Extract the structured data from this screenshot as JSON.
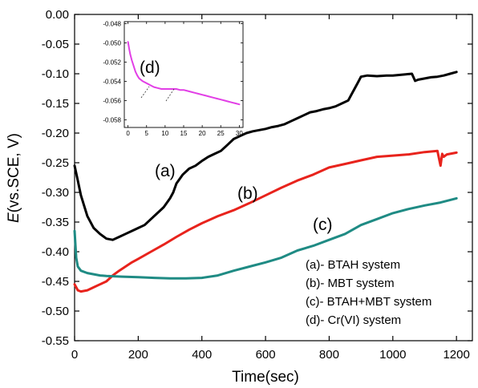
{
  "chart_data": [
    {
      "type": "line",
      "xlabel": "Time(sec)",
      "ylabel_italic": "E",
      "ylabel_rest": "(vs.SCE, V)",
      "xlim": [
        0,
        1250
      ],
      "ylim": [
        -0.55,
        0.0
      ],
      "xticks": [
        0,
        200,
        400,
        600,
        800,
        1000,
        1200
      ],
      "xtick_labels": [
        "0",
        "200",
        "400",
        "600",
        "800",
        "1000",
        "1200"
      ],
      "yticks": [
        0.0,
        -0.05,
        -0.1,
        -0.15,
        -0.2,
        -0.25,
        -0.3,
        -0.35,
        -0.4,
        -0.45,
        -0.5,
        -0.55
      ],
      "ytick_labels": [
        "0.00",
        "-0.05",
        "-0.10",
        "-0.15",
        "-0.20",
        "-0.25",
        "-0.30",
        "-0.35",
        "-0.40",
        "-0.45",
        "-0.50",
        "-0.55"
      ],
      "grid": false,
      "legend": {
        "placement": "bottom-right",
        "entries": [
          "(a)- BTAH system",
          "(b)- MBT system",
          "(c)- BTAH+MBT system",
          "(d)- Cr(VI)  system"
        ]
      },
      "series": [
        {
          "label": "(a)",
          "color": "#000000",
          "x": [
            0,
            10,
            20,
            40,
            60,
            80,
            100,
            120,
            140,
            160,
            180,
            200,
            220,
            240,
            260,
            280,
            300,
            310,
            320,
            340,
            360,
            380,
            400,
            420,
            440,
            460,
            480,
            500,
            520,
            540,
            560,
            580,
            600,
            620,
            640,
            660,
            680,
            700,
            720,
            740,
            760,
            780,
            800,
            820,
            840,
            860,
            870,
            880,
            890,
            900,
            920,
            950,
            980,
            1000,
            1020,
            1040,
            1060,
            1070,
            1080,
            1100,
            1120,
            1140,
            1160,
            1180,
            1200
          ],
          "y": [
            -0.255,
            -0.28,
            -0.305,
            -0.34,
            -0.36,
            -0.37,
            -0.378,
            -0.38,
            -0.375,
            -0.37,
            -0.365,
            -0.36,
            -0.355,
            -0.345,
            -0.335,
            -0.325,
            -0.31,
            -0.3,
            -0.285,
            -0.27,
            -0.26,
            -0.255,
            -0.247,
            -0.24,
            -0.235,
            -0.23,
            -0.22,
            -0.21,
            -0.205,
            -0.2,
            -0.197,
            -0.195,
            -0.193,
            -0.19,
            -0.188,
            -0.185,
            -0.18,
            -0.175,
            -0.17,
            -0.165,
            -0.163,
            -0.16,
            -0.158,
            -0.155,
            -0.15,
            -0.145,
            -0.135,
            -0.125,
            -0.115,
            -0.105,
            -0.103,
            -0.104,
            -0.103,
            -0.103,
            -0.102,
            -0.101,
            -0.1,
            -0.112,
            -0.11,
            -0.108,
            -0.106,
            -0.105,
            -0.103,
            -0.1,
            -0.097
          ]
        },
        {
          "label": "(b)",
          "color": "#e8231c",
          "x": [
            0,
            5,
            10,
            20,
            40,
            60,
            80,
            100,
            120,
            140,
            160,
            180,
            200,
            240,
            280,
            320,
            360,
            400,
            450,
            500,
            550,
            600,
            650,
            700,
            750,
            800,
            850,
            900,
            950,
            1000,
            1050,
            1100,
            1140,
            1150,
            1155,
            1160,
            1170,
            1200
          ],
          "y": [
            -0.455,
            -0.46,
            -0.465,
            -0.467,
            -0.465,
            -0.46,
            -0.455,
            -0.45,
            -0.44,
            -0.432,
            -0.425,
            -0.418,
            -0.412,
            -0.4,
            -0.388,
            -0.375,
            -0.363,
            -0.352,
            -0.34,
            -0.33,
            -0.318,
            -0.305,
            -0.292,
            -0.28,
            -0.27,
            -0.258,
            -0.252,
            -0.246,
            -0.24,
            -0.238,
            -0.236,
            -0.232,
            -0.23,
            -0.255,
            -0.235,
            -0.24,
            -0.236,
            -0.233
          ]
        },
        {
          "label": "(c)",
          "color": "#1f8b84",
          "x": [
            0,
            5,
            10,
            20,
            40,
            60,
            80,
            100,
            150,
            200,
            250,
            300,
            350,
            400,
            450,
            500,
            550,
            600,
            650,
            700,
            750,
            800,
            850,
            900,
            950,
            1000,
            1050,
            1100,
            1150,
            1200
          ],
          "y": [
            -0.365,
            -0.41,
            -0.425,
            -0.432,
            -0.436,
            -0.438,
            -0.44,
            -0.441,
            -0.442,
            -0.443,
            -0.444,
            -0.445,
            -0.445,
            -0.444,
            -0.44,
            -0.432,
            -0.425,
            -0.418,
            -0.41,
            -0.398,
            -0.39,
            -0.38,
            -0.37,
            -0.355,
            -0.345,
            -0.335,
            -0.328,
            -0.322,
            -0.317,
            -0.31
          ]
        }
      ]
    },
    {
      "type": "line",
      "placement": "inset top-left",
      "xlim": [
        -1,
        31
      ],
      "ylim": [
        -0.0588,
        -0.0478
      ],
      "xticks": [
        0,
        5,
        10,
        15,
        20,
        25,
        30
      ],
      "xtick_labels": [
        "0",
        "5",
        "10",
        "15",
        "20",
        "25",
        "30"
      ],
      "yticks": [
        -0.048,
        -0.05,
        -0.052,
        -0.054,
        -0.056,
        -0.058
      ],
      "ytick_labels": [
        "-0.048",
        "-0.050",
        "-0.052",
        "-0.054",
        "-0.056",
        "-0.058"
      ],
      "grid": false,
      "series": [
        {
          "label": "(d)",
          "color": "#e23fe6",
          "x": [
            0,
            0.3,
            0.6,
            1,
            1.5,
            2,
            2.5,
            3,
            4,
            5,
            6,
            7,
            8,
            9,
            10,
            11,
            12,
            13,
            14,
            15,
            16,
            17,
            18,
            19,
            20,
            21,
            22,
            23,
            24,
            25,
            26,
            27,
            28,
            29,
            30
          ],
          "y": [
            -0.0499,
            -0.0506,
            -0.0512,
            -0.0518,
            -0.0524,
            -0.053,
            -0.0534,
            -0.0537,
            -0.054,
            -0.0542,
            -0.0544,
            -0.0546,
            -0.0547,
            -0.0548,
            -0.0548,
            -0.0548,
            -0.0548,
            -0.0548,
            -0.0549,
            -0.0549,
            -0.055,
            -0.0551,
            -0.0552,
            -0.0553,
            -0.0554,
            -0.0555,
            -0.0556,
            -0.0557,
            -0.0558,
            -0.0559,
            -0.056,
            -0.0561,
            -0.0562,
            -0.0563,
            -0.0564
          ]
        }
      ]
    }
  ]
}
